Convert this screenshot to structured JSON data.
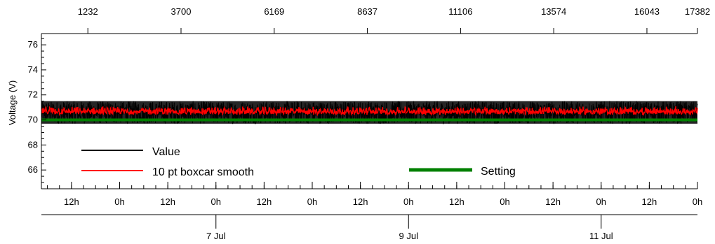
{
  "chart_data": {
    "type": "line",
    "ylabel": "Voltage (V)",
    "ylim": [
      64.5,
      76.9
    ],
    "yticks": [
      66,
      68,
      70,
      72,
      74,
      76
    ],
    "ytick_labels": [
      "66",
      "68",
      "70",
      "72",
      "74",
      "76"
    ],
    "top_axis": {
      "label": "",
      "range": [
        1,
        17382
      ],
      "ticks": [
        1232,
        3700,
        6169,
        8637,
        11106,
        13574,
        16043,
        17382
      ],
      "tick_labels": [
        "1232",
        "3700",
        "6169",
        "8637",
        "11106",
        "13574",
        "16043",
        "17382"
      ]
    },
    "bottom_time_axis": {
      "range": [
        "2024-07-05T04:30",
        "2024-07-12T00:00"
      ],
      "hour_ticks": [
        {
          "t": "2024-07-05T12:00",
          "label": "12h"
        },
        {
          "t": "2024-07-06T00:00",
          "label": "0h"
        },
        {
          "t": "2024-07-06T12:00",
          "label": "12h"
        },
        {
          "t": "2024-07-07T00:00",
          "label": "0h"
        },
        {
          "t": "2024-07-07T12:00",
          "label": "12h"
        },
        {
          "t": "2024-07-08T00:00",
          "label": "0h"
        },
        {
          "t": "2024-07-08T12:00",
          "label": "12h"
        },
        {
          "t": "2024-07-09T00:00",
          "label": "0h"
        },
        {
          "t": "2024-07-09T12:00",
          "label": "12h"
        },
        {
          "t": "2024-07-10T00:00",
          "label": "0h"
        },
        {
          "t": "2024-07-10T12:00",
          "label": "12h"
        },
        {
          "t": "2024-07-11T00:00",
          "label": "0h"
        },
        {
          "t": "2024-07-11T12:00",
          "label": "12h"
        },
        {
          "t": "2024-07-12T00:00",
          "label": "0h"
        }
      ],
      "date_ticks": [
        {
          "t": "2024-07-07T00:00",
          "label": "7 Jul"
        },
        {
          "t": "2024-07-09T00:00",
          "label": "9 Jul"
        },
        {
          "t": "2024-07-11T00:00",
          "label": "11 Jul"
        }
      ]
    },
    "series": [
      {
        "name": "Value",
        "color": "#000000",
        "mean": 70.6,
        "band": [
          69.7,
          71.5
        ],
        "style": "noisy-band"
      },
      {
        "name": "10 pt boxcar smooth",
        "color": "#ff0000",
        "mean": 70.6,
        "band": [
          70.2,
          71.1
        ],
        "style": "noisy-line"
      },
      {
        "name": "Setting",
        "color": "#008000",
        "values": [
          70.0,
          70.0
        ],
        "style": "constant"
      }
    ],
    "legend": [
      {
        "name": "Value",
        "color": "#000000",
        "position": "bottom-left"
      },
      {
        "name": "10 pt boxcar smooth",
        "color": "#ff0000",
        "position": "bottom-left"
      },
      {
        "name": "Setting",
        "color": "#008000",
        "position": "bottom-center"
      }
    ],
    "grid": false
  }
}
